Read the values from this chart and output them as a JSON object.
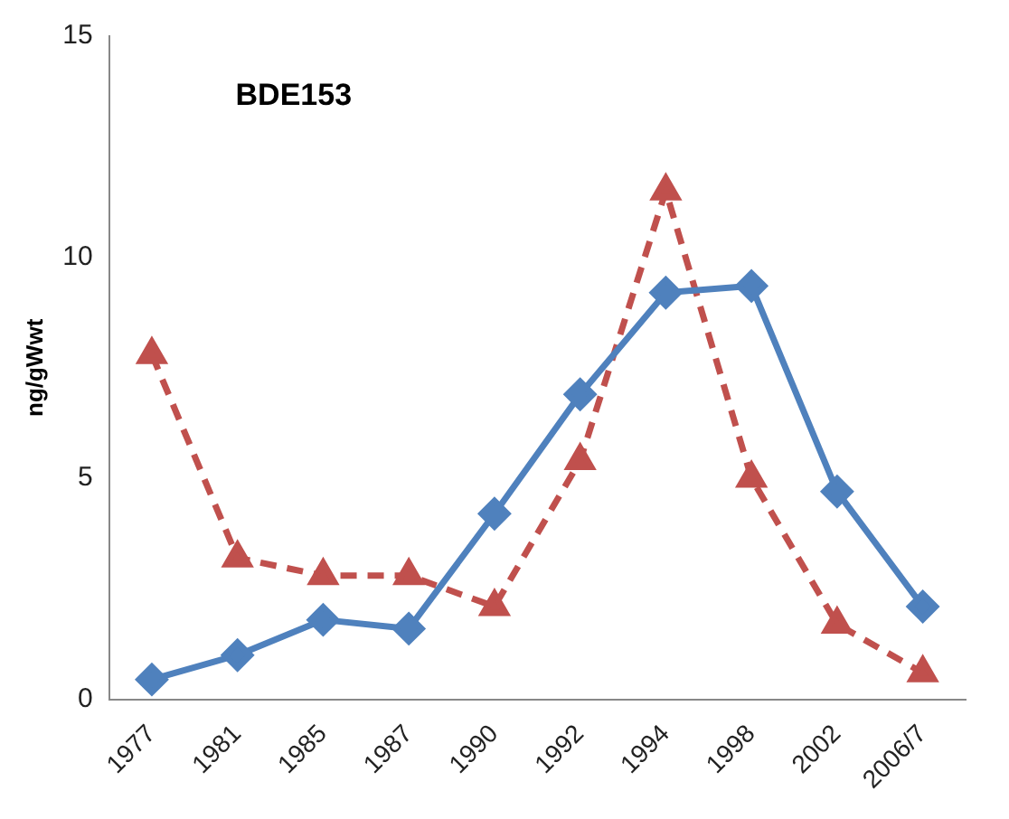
{
  "chart_data": {
    "type": "line",
    "title": "BDE153",
    "ylabel": "ng/gWwt",
    "categories": [
      "1977",
      "1981",
      "1985",
      "1987",
      "1990",
      "1992",
      "1994",
      "1998",
      "2002",
      "2006/7"
    ],
    "series": [
      {
        "color": "#4f81bd",
        "marker": "diamond",
        "line_style": "solid",
        "values": [
          0.45,
          1.0,
          1.8,
          1.6,
          4.2,
          6.9,
          9.2,
          9.35,
          4.7,
          2.1
        ]
      },
      {
        "color": "#c0504d",
        "marker": "triangle",
        "line_style": "dashed",
        "values": [
          7.8,
          3.2,
          2.8,
          2.8,
          2.1,
          5.4,
          11.5,
          5.0,
          1.7,
          0.6
        ]
      }
    ],
    "ylim": [
      0,
      15
    ],
    "yticks": [
      0,
      5,
      10,
      15
    ],
    "grid": false,
    "legend": false
  }
}
